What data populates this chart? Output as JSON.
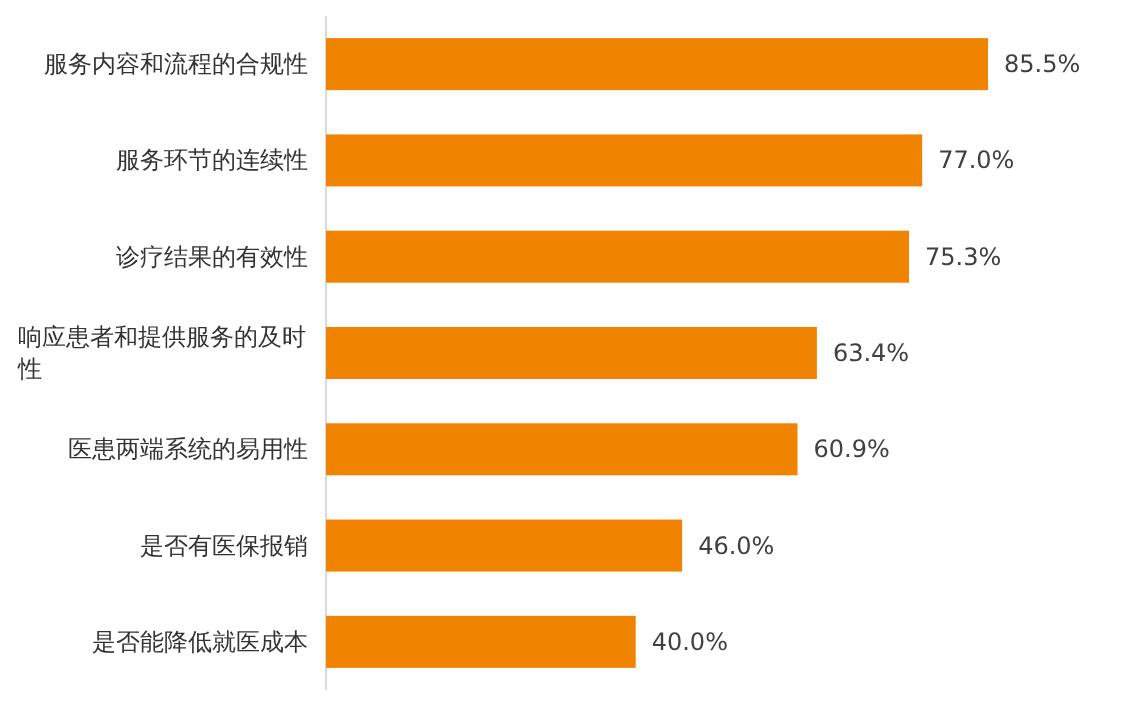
{
  "chart_data": {
    "type": "bar",
    "orientation": "horizontal",
    "categories": [
      "服务内容和流程的合规性",
      "服务环节的连续性",
      "诊疗结果的有效性",
      "响应患者和提供服务的及时性",
      "医患两端系统的易用性",
      "是否有医保报销",
      "是否能降低就医成本"
    ],
    "values": [
      85.5,
      77.0,
      75.3,
      63.4,
      60.9,
      46.0,
      40.0
    ],
    "value_labels": [
      "85.5%",
      "77.0%",
      "75.3%",
      "63.4%",
      "60.9%",
      "46.0%",
      "40.0%"
    ],
    "color": "#f08300"
  }
}
